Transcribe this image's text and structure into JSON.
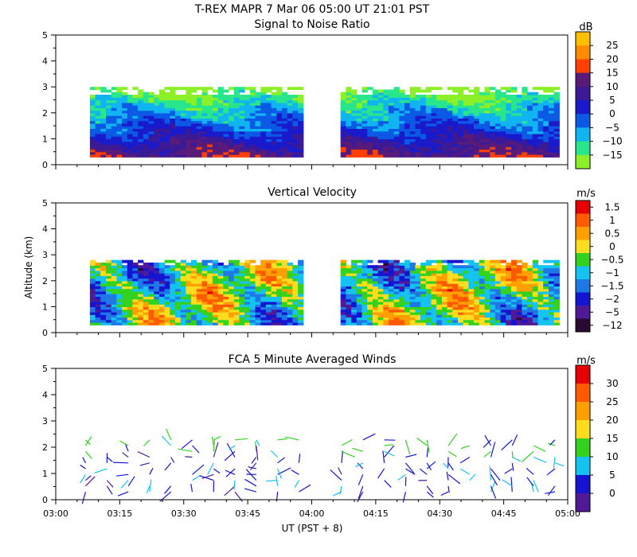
{
  "header": {
    "title": "T-REX  MAPR  7 Mar 06  05:00 UT  21:01  PST"
  },
  "chart_data": [
    {
      "type": "heatmap",
      "title": "Signal to Noise Ratio",
      "xlabel": "UT  (PST + 8)",
      "ylabel": "Altitude (km)",
      "x_ticks": [
        "03:00",
        "03:15",
        "03:30",
        "03:45",
        "04:00",
        "04:15",
        "04:30",
        "04:45",
        "05:00"
      ],
      "y_ticks": [
        "0",
        "1",
        "2",
        "3",
        "4",
        "5"
      ],
      "ylim": [
        0,
        5
      ],
      "colorbar_unit": "dB",
      "colorbar_ticks": [
        "25",
        "20",
        "15",
        "10",
        "5",
        "0",
        "−5",
        "−10",
        "−15"
      ],
      "colors": [
        "#ffc000",
        "#ff8c00",
        "#ff4000",
        "#5a1a78",
        "#3c1a96",
        "#1a1acd",
        "#0a5ae6",
        "#10b4f0",
        "#28e68c",
        "#8cf028"
      ],
      "data_gaps": [
        [
          "03:58",
          "04:06"
        ]
      ],
      "echo_top_km": 3.0,
      "echo_base_km": 0.3
    },
    {
      "type": "heatmap",
      "title": "Vertical Velocity",
      "xlabel": "UT  (PST + 8)",
      "ylabel": "Altitude (km)",
      "x_ticks": [
        "03:00",
        "03:15",
        "03:30",
        "03:45",
        "04:00",
        "04:15",
        "04:30",
        "04:45",
        "05:00"
      ],
      "y_ticks": [
        "0",
        "1",
        "2",
        "3",
        "4",
        "5"
      ],
      "ylim": [
        0,
        5
      ],
      "colorbar_unit": "m/s",
      "colorbar_ticks": [
        "1.5",
        "1",
        "0.5",
        "0",
        "−0.5",
        "−1",
        "−1.5",
        "−2",
        "−5",
        "−12"
      ],
      "colors": [
        "#e60000",
        "#ff5a00",
        "#ffa000",
        "#ffdc1e",
        "#32d21e",
        "#14c3f0",
        "#1e78e6",
        "#1414d2",
        "#501a96",
        "#280a32"
      ],
      "data_gaps": [
        [
          "03:58",
          "04:06"
        ]
      ],
      "echo_top_km": 2.8,
      "echo_base_km": 0.3
    },
    {
      "type": "vector",
      "title": "FCA 5 Minute Averaged Winds",
      "xlabel": "UT  (PST + 8)",
      "ylabel": "Altitude (km)",
      "x_ticks": [
        "03:00",
        "03:15",
        "03:30",
        "03:45",
        "04:00",
        "04:15",
        "04:30",
        "04:45",
        "05:00"
      ],
      "y_ticks": [
        "0",
        "1",
        "2",
        "3",
        "4",
        "5"
      ],
      "ylim": [
        0,
        5
      ],
      "colorbar_unit": "m/s",
      "colorbar_ticks": [
        "30",
        "25",
        "20",
        "15",
        "10",
        "5",
        "0"
      ],
      "colors": [
        "#e60000",
        "#ff5a00",
        "#ffa000",
        "#ffdc1e",
        "#32d21e",
        "#14c3f0",
        "#1414d2",
        "#501a96"
      ],
      "profile_times": [
        "03:07",
        "03:12",
        "03:17",
        "03:22",
        "03:27",
        "03:32",
        "03:37",
        "03:42",
        "03:47",
        "03:52",
        "03:57",
        "04:07",
        "04:12",
        "04:17",
        "04:22",
        "04:27",
        "04:32",
        "04:37",
        "04:42",
        "04:47",
        "04:52",
        "04:57"
      ],
      "max_altitude_km": 2.5
    }
  ]
}
